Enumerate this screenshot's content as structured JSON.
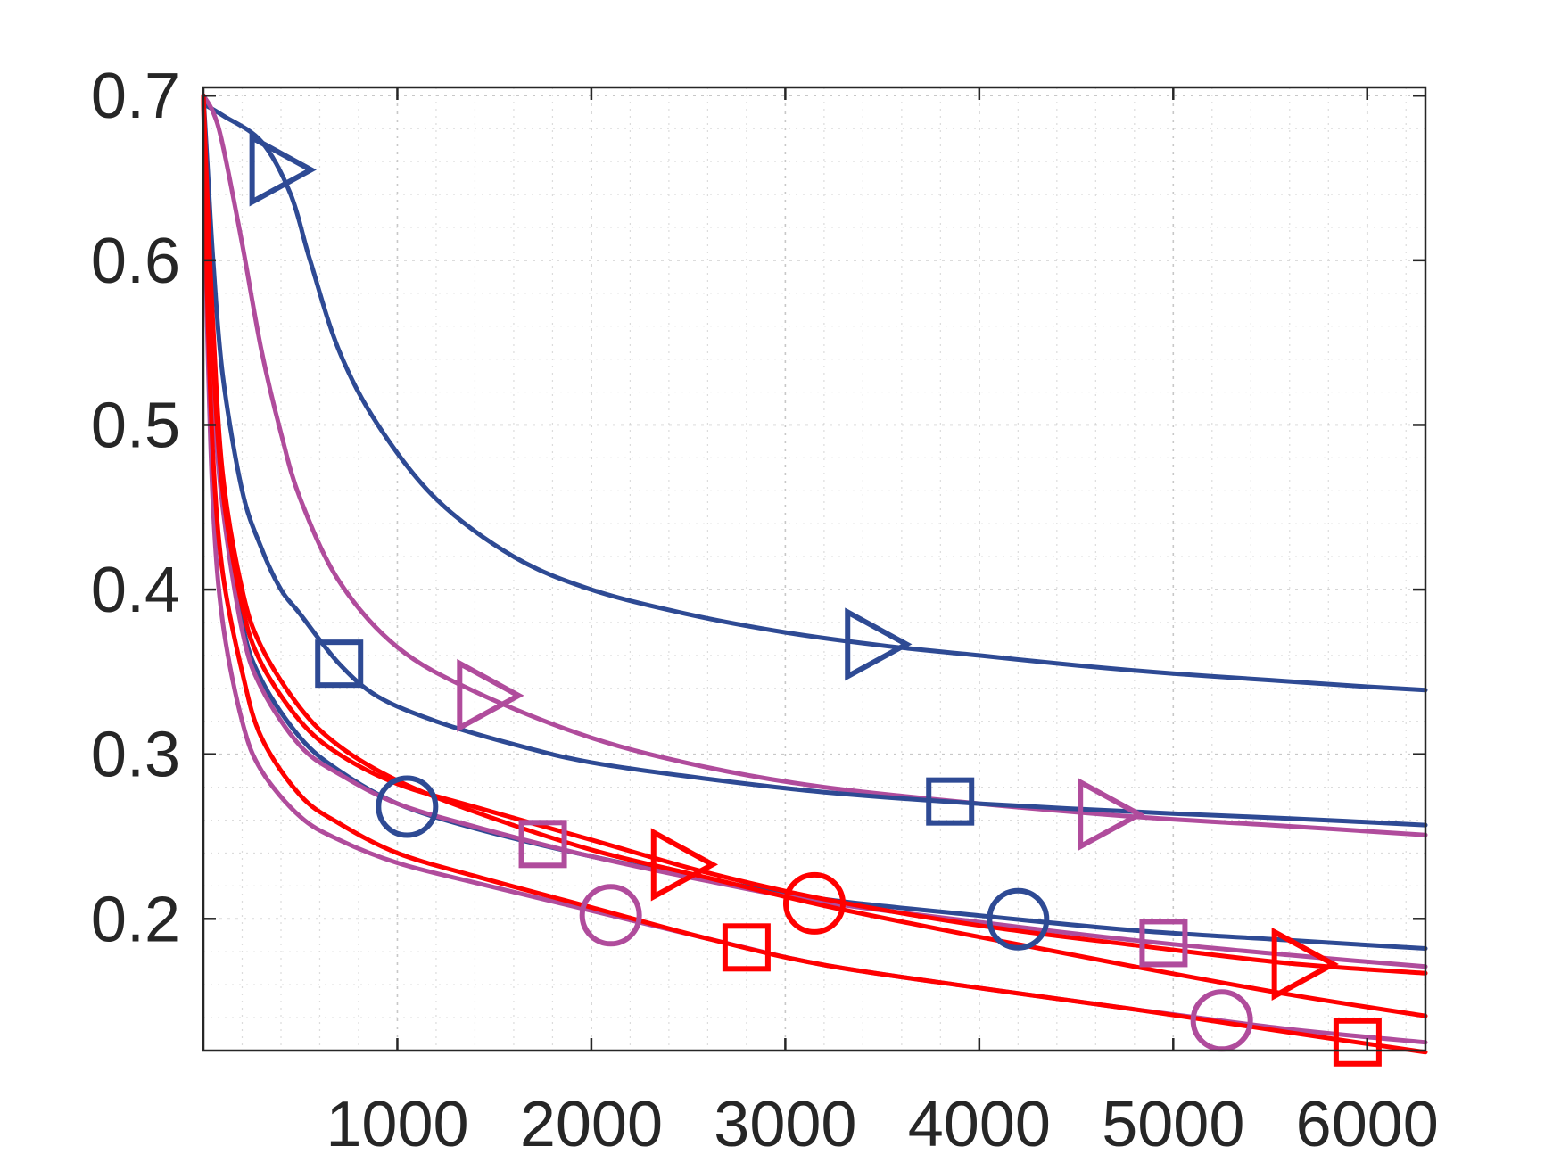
{
  "chart_data": {
    "type": "line",
    "title": "",
    "xlabel": "",
    "ylabel": "",
    "xlim": [
      0,
      6300
    ],
    "ylim": [
      0.12,
      0.705
    ],
    "grid": true,
    "minor_grid": true,
    "legend": "none",
    "x_ticks": [
      1000,
      2000,
      3000,
      4000,
      5000,
      6000
    ],
    "x_tick_labels": [
      "1000",
      "2000",
      "3000",
      "4000",
      "5000",
      "6000"
    ],
    "y_ticks": [
      0.2,
      0.3,
      0.4,
      0.5,
      0.6,
      0.7
    ],
    "y_tick_labels": [
      "0.2",
      "0.3",
      "0.4",
      "0.5",
      "0.6",
      "0.7"
    ],
    "colors": {
      "blue": "#2e4a94",
      "purple": "#b04c9c",
      "red": "#ff0000",
      "axis": "#262626"
    },
    "series": [
      {
        "name": "blue-triangle",
        "color": "#2e4a94",
        "marker": "triangle-right",
        "x": [
          0,
          100,
          300,
          450,
          550,
          700,
          900,
          1200,
          1600,
          2000,
          2500,
          3000,
          3500,
          4000,
          4500,
          5000,
          5500,
          6000,
          6300
        ],
        "y": [
          0.695,
          0.688,
          0.672,
          0.64,
          0.6,
          0.545,
          0.5,
          0.455,
          0.42,
          0.4,
          0.385,
          0.374,
          0.366,
          0.36,
          0.354,
          0.349,
          0.345,
          0.341,
          0.339
        ],
        "marker_x": [
          380,
          3450
        ]
      },
      {
        "name": "purple-triangle",
        "color": "#b04c9c",
        "marker": "triangle-right",
        "x": [
          0,
          50,
          100,
          200,
          300,
          400,
          500,
          700,
          1000,
          1400,
          2000,
          2600,
          3200,
          4000,
          4800,
          5500,
          6300
        ],
        "y": [
          0.7,
          0.69,
          0.67,
          0.61,
          0.545,
          0.495,
          0.455,
          0.405,
          0.365,
          0.338,
          0.31,
          0.292,
          0.28,
          0.27,
          0.262,
          0.257,
          0.251
        ],
        "marker_x": [
          1450,
          4650
        ]
      },
      {
        "name": "blue-square",
        "color": "#2e4a94",
        "marker": "square",
        "x": [
          0,
          20,
          50,
          100,
          200,
          300,
          400,
          500,
          700,
          900,
          1200,
          1600,
          2000,
          2600,
          3200,
          4000,
          5000,
          5600,
          6300
        ],
        "y": [
          0.7,
          0.66,
          0.6,
          0.53,
          0.46,
          0.425,
          0.4,
          0.385,
          0.355,
          0.335,
          0.32,
          0.306,
          0.295,
          0.285,
          0.277,
          0.27,
          0.264,
          0.261,
          0.257
        ],
        "marker_x": [
          700,
          3850
        ]
      },
      {
        "name": "blue-circle",
        "color": "#2e4a94",
        "marker": "circle",
        "x": [
          0,
          20,
          50,
          100,
          200,
          300,
          500,
          700,
          1000,
          1400,
          2000,
          2600,
          3200,
          4000,
          4800,
          5600,
          6300
        ],
        "y": [
          0.7,
          0.62,
          0.54,
          0.46,
          0.38,
          0.345,
          0.31,
          0.29,
          0.27,
          0.255,
          0.238,
          0.224,
          0.212,
          0.202,
          0.193,
          0.187,
          0.182
        ],
        "marker_x": [
          1050,
          4200
        ]
      },
      {
        "name": "purple-square",
        "color": "#b04c9c",
        "marker": "square",
        "x": [
          0,
          20,
          50,
          100,
          200,
          300,
          500,
          700,
          1000,
          1400,
          2000,
          2600,
          3200,
          4000,
          4800,
          5600,
          6300
        ],
        "y": [
          0.7,
          0.6,
          0.52,
          0.45,
          0.375,
          0.34,
          0.305,
          0.288,
          0.27,
          0.256,
          0.238,
          0.223,
          0.21,
          0.198,
          0.187,
          0.178,
          0.171
        ],
        "marker_x": [
          1750,
          4950
        ]
      },
      {
        "name": "purple-circle",
        "color": "#b04c9c",
        "marker": "circle",
        "x": [
          0,
          20,
          50,
          100,
          200,
          300,
          500,
          700,
          1000,
          1400,
          2000,
          2600,
          3200,
          4000,
          4800,
          5600,
          6300
        ],
        "y": [
          0.7,
          0.56,
          0.45,
          0.38,
          0.32,
          0.29,
          0.262,
          0.248,
          0.234,
          0.222,
          0.205,
          0.188,
          0.172,
          0.158,
          0.145,
          0.133,
          0.125
        ],
        "marker_x": [
          2100,
          5250
        ]
      },
      {
        "name": "red-triangle",
        "color": "#ff0000",
        "marker": "triangle-right",
        "x": [
          0,
          20,
          50,
          100,
          200,
          300,
          500,
          700,
          1000,
          1400,
          2000,
          2600,
          3200,
          4000,
          4800,
          5600,
          6300
        ],
        "y": [
          0.7,
          0.62,
          0.54,
          0.46,
          0.39,
          0.355,
          0.32,
          0.3,
          0.282,
          0.268,
          0.248,
          0.228,
          0.212,
          0.196,
          0.184,
          0.173,
          0.167
        ],
        "marker_x": [
          2450,
          5650
        ]
      },
      {
        "name": "red-circle",
        "color": "#ff0000",
        "marker": "circle",
        "x": [
          0,
          20,
          50,
          100,
          200,
          300,
          500,
          700,
          1000,
          1400,
          2000,
          2600,
          3200,
          4000,
          4800,
          5600,
          6300
        ],
        "y": [
          0.7,
          0.64,
          0.56,
          0.47,
          0.4,
          0.365,
          0.328,
          0.305,
          0.284,
          0.265,
          0.242,
          0.225,
          0.208,
          0.189,
          0.171,
          0.154,
          0.141
        ],
        "marker_x": [
          3150
        ]
      },
      {
        "name": "red-square",
        "color": "#ff0000",
        "marker": "square",
        "x": [
          0,
          20,
          50,
          100,
          200,
          300,
          500,
          700,
          1000,
          1400,
          2000,
          2600,
          3200,
          4000,
          4800,
          5600,
          6300
        ],
        "y": [
          0.7,
          0.58,
          0.48,
          0.41,
          0.35,
          0.31,
          0.275,
          0.258,
          0.24,
          0.226,
          0.207,
          0.188,
          0.172,
          0.158,
          0.145,
          0.131,
          0.119
        ],
        "marker_x": [
          2800,
          5950
        ]
      }
    ]
  }
}
